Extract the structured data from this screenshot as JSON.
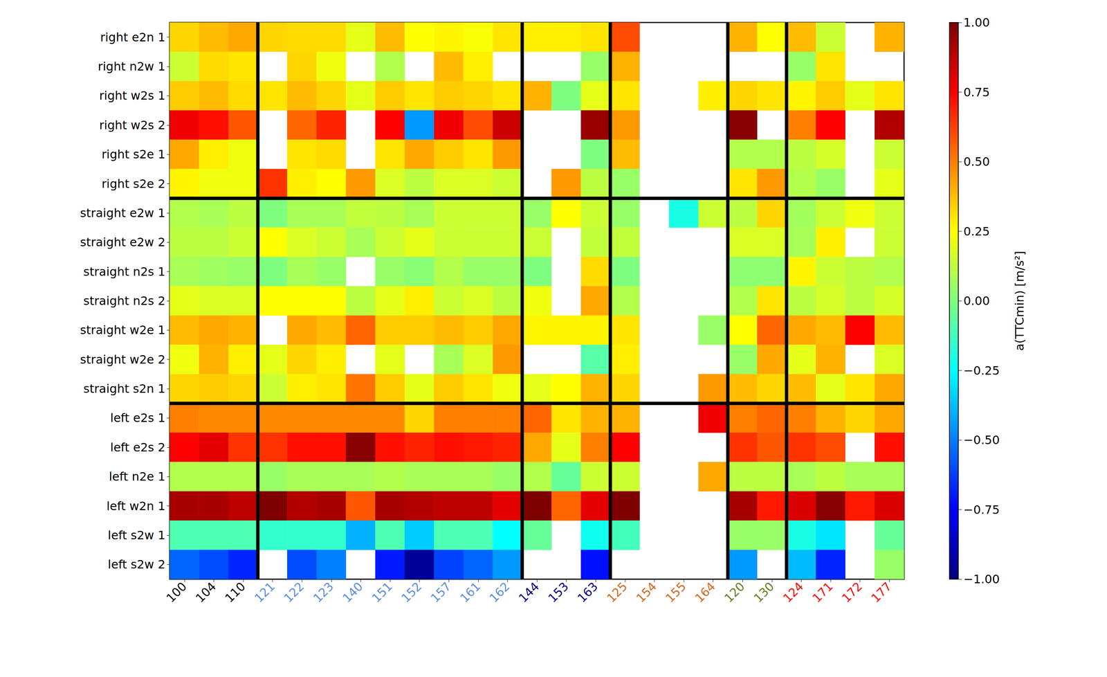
{
  "chart_data": {
    "type": "heatmap",
    "rows": [
      "right e2n 1",
      "right n2w 1",
      "right w2s 1",
      "right w2s 2",
      "right s2e 1",
      "right s2e 2",
      "straight e2w 1",
      "straight e2w 2",
      "straight n2s 1",
      "straight n2s 2",
      "straight w2e 1",
      "straight w2e 2",
      "straight s2n 1",
      "left e2s 1",
      "left e2s 2",
      "left n2e 1",
      "left w2n 1",
      "left s2w 1",
      "left s2w 2"
    ],
    "columns": [
      "100",
      "104",
      "110",
      "121",
      "122",
      "123",
      "140",
      "151",
      "152",
      "157",
      "161",
      "162",
      "144",
      "153",
      "163",
      "125",
      "154",
      "155",
      "164",
      "120",
      "130",
      "124",
      "171",
      "172",
      "177"
    ],
    "column_colors": [
      "#000000",
      "#000000",
      "#000000",
      "#5b8ee0",
      "#5b8ee0",
      "#5b8ee0",
      "#5b8ee0",
      "#5b8ee0",
      "#5b8ee0",
      "#5b8ee0",
      "#5b8ee0",
      "#5b8ee0",
      "#00007f",
      "#00007f",
      "#00007f",
      "#d2691e",
      "#d2691e",
      "#d2691e",
      "#d2691e",
      "#5f7f1f",
      "#5f7f1f",
      "#ff0000",
      "#ff0000",
      "#ff0000",
      "#ff0000"
    ],
    "values": [
      [
        0.33,
        0.38,
        0.42,
        0.33,
        0.32,
        0.32,
        0.2,
        0.38,
        0.25,
        0.27,
        0.24,
        0.3,
        0.28,
        0.28,
        0.3,
        0.6,
        null,
        null,
        null,
        0.4,
        0.25,
        0.38,
        0.15,
        null,
        0.4
      ],
      [
        0.15,
        0.32,
        0.3,
        null,
        0.33,
        0.22,
        null,
        0.1,
        null,
        0.38,
        0.28,
        null,
        null,
        null,
        0.05,
        0.4,
        null,
        null,
        null,
        null,
        null,
        0.05,
        0.3,
        null,
        null
      ],
      [
        0.35,
        0.38,
        0.32,
        0.3,
        0.38,
        0.33,
        0.2,
        0.35,
        0.3,
        0.35,
        0.33,
        0.3,
        0.4,
        0.0,
        0.2,
        0.3,
        null,
        null,
        0.28,
        0.33,
        0.3,
        0.27,
        0.35,
        0.2,
        0.3
      ],
      [
        0.78,
        0.72,
        0.58,
        null,
        0.55,
        0.68,
        null,
        0.75,
        -0.45,
        0.78,
        0.6,
        0.85,
        null,
        null,
        0.95,
        0.45,
        null,
        null,
        null,
        0.98,
        null,
        0.5,
        0.75,
        null,
        0.9
      ],
      [
        0.42,
        0.28,
        0.22,
        null,
        0.3,
        0.32,
        null,
        0.3,
        0.42,
        0.35,
        0.3,
        0.45,
        null,
        null,
        0.0,
        0.38,
        null,
        null,
        null,
        0.1,
        0.1,
        0.12,
        0.17,
        null,
        0.15
      ],
      [
        0.27,
        0.22,
        0.22,
        0.65,
        0.28,
        0.25,
        0.45,
        0.18,
        0.12,
        0.18,
        0.18,
        0.15,
        null,
        0.45,
        0.12,
        0.05,
        null,
        null,
        null,
        0.3,
        0.45,
        0.1,
        0.05,
        null,
        0.2
      ],
      [
        0.1,
        0.08,
        0.12,
        0.0,
        0.08,
        0.08,
        0.13,
        0.12,
        0.08,
        0.15,
        0.15,
        0.15,
        0.05,
        0.25,
        0.15,
        0.05,
        null,
        -0.2,
        0.15,
        0.12,
        0.33,
        0.07,
        0.15,
        0.22,
        0.15
      ],
      [
        0.12,
        0.12,
        0.15,
        0.25,
        0.18,
        0.15,
        0.08,
        0.15,
        0.2,
        0.15,
        0.15,
        0.15,
        0.15,
        null,
        0.13,
        0.13,
        null,
        null,
        null,
        0.18,
        0.18,
        0.08,
        0.28,
        null,
        0.15
      ],
      [
        0.08,
        0.06,
        0.05,
        0.0,
        0.08,
        0.05,
        null,
        0.05,
        0.02,
        0.1,
        0.05,
        0.05,
        0.0,
        null,
        0.32,
        0.0,
        null,
        null,
        null,
        0.03,
        0.03,
        0.27,
        0.15,
        0.12,
        0.1
      ],
      [
        0.2,
        0.18,
        0.18,
        0.25,
        0.25,
        0.25,
        0.12,
        0.2,
        0.28,
        0.15,
        0.18,
        0.12,
        0.22,
        null,
        0.42,
        0.1,
        null,
        null,
        null,
        0.1,
        0.3,
        0.12,
        0.17,
        0.12,
        0.17
      ],
      [
        0.38,
        0.42,
        0.4,
        null,
        0.42,
        0.38,
        0.55,
        0.35,
        0.35,
        0.38,
        0.35,
        0.42,
        0.27,
        0.27,
        0.27,
        0.3,
        null,
        null,
        0.05,
        0.25,
        0.55,
        0.42,
        0.38,
        0.75,
        0.38
      ],
      [
        0.22,
        0.4,
        0.28,
        0.2,
        0.33,
        0.28,
        null,
        0.2,
        null,
        0.08,
        0.18,
        0.45,
        null,
        null,
        -0.08,
        0.28,
        null,
        null,
        null,
        0.05,
        0.42,
        0.2,
        0.4,
        null,
        0.18
      ],
      [
        0.33,
        0.35,
        0.33,
        0.15,
        0.28,
        0.3,
        0.52,
        0.35,
        0.2,
        0.35,
        0.3,
        0.22,
        0.2,
        0.25,
        0.4,
        0.33,
        null,
        null,
        0.45,
        0.38,
        0.33,
        0.38,
        0.2,
        0.3,
        0.42
      ],
      [
        0.5,
        0.48,
        0.48,
        0.48,
        0.48,
        0.48,
        0.48,
        0.48,
        0.33,
        0.5,
        0.5,
        0.5,
        0.55,
        0.3,
        0.4,
        0.4,
        null,
        null,
        0.78,
        0.5,
        0.55,
        0.5,
        0.4,
        0.33,
        0.42
      ],
      [
        0.75,
        0.8,
        0.65,
        0.65,
        0.72,
        0.72,
        0.98,
        0.72,
        0.68,
        0.72,
        0.7,
        0.68,
        0.42,
        0.2,
        0.5,
        0.75,
        null,
        null,
        null,
        0.65,
        0.58,
        0.65,
        0.6,
        null,
        0.72
      ],
      [
        0.1,
        0.1,
        0.1,
        0.05,
        0.08,
        0.08,
        0.08,
        0.1,
        0.08,
        0.08,
        0.08,
        0.05,
        0.1,
        -0.05,
        0.15,
        0.15,
        null,
        null,
        0.42,
        0.12,
        0.12,
        0.08,
        0.12,
        0.08,
        0.08
      ],
      [
        0.92,
        0.92,
        0.88,
        1.0,
        0.9,
        0.92,
        0.58,
        0.92,
        0.9,
        0.88,
        0.88,
        0.8,
        1.0,
        0.55,
        0.8,
        1.0,
        null,
        null,
        null,
        0.92,
        0.7,
        0.82,
        0.98,
        0.7,
        0.82
      ],
      [
        -0.1,
        -0.1,
        -0.1,
        -0.15,
        -0.15,
        -0.15,
        -0.4,
        -0.1,
        -0.35,
        -0.1,
        -0.1,
        -0.25,
        -0.05,
        null,
        -0.22,
        -0.12,
        null,
        null,
        null,
        0.05,
        0.05,
        -0.2,
        -0.3,
        null,
        -0.05
      ],
      [
        -0.55,
        -0.6,
        -0.68,
        null,
        -0.6,
        -0.5,
        null,
        -0.7,
        -0.95,
        -0.62,
        -0.55,
        -0.45,
        null,
        null,
        -0.72,
        null,
        null,
        null,
        null,
        -0.45,
        null,
        -0.38,
        -0.68,
        null,
        0.05
      ]
    ],
    "colorbar": {
      "label": "a(TTCmin) [m/s²]",
      "range": [
        -1,
        1
      ],
      "ticks": [
        {
          "value": -1,
          "label": "−1.00"
        },
        {
          "value": -0.75,
          "label": "−0.75"
        },
        {
          "value": -0.5,
          "label": "−0.50"
        },
        {
          "value": -0.25,
          "label": "−0.25"
        },
        {
          "value": 0,
          "label": "0.00"
        },
        {
          "value": 0.25,
          "label": "0.25"
        },
        {
          "value": 0.5,
          "label": "0.50"
        },
        {
          "value": 0.75,
          "label": "0.75"
        },
        {
          "value": 1,
          "label": "1.00"
        }
      ]
    }
  }
}
